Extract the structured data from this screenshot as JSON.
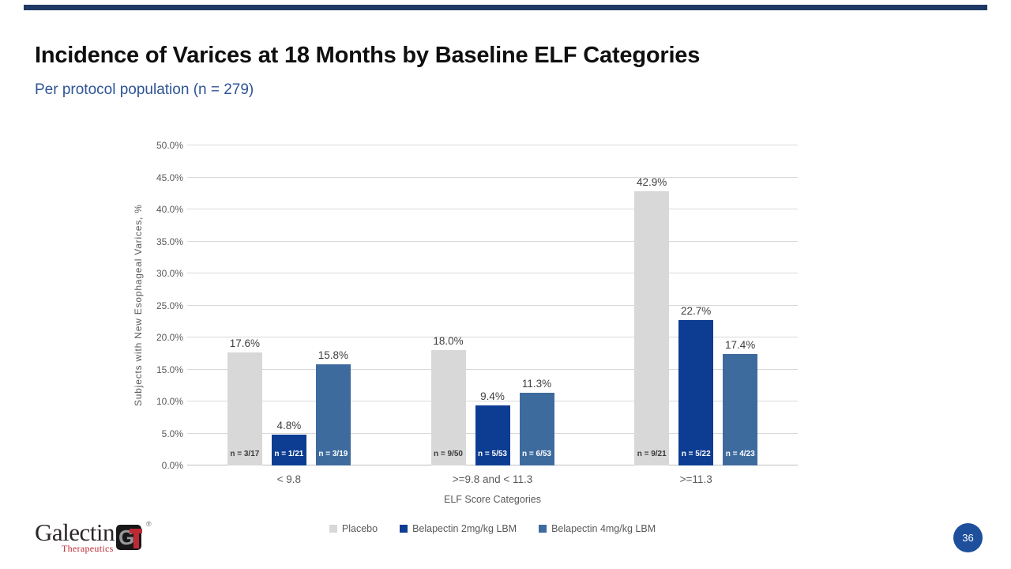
{
  "slide": {
    "title": "Incidence of Varices at 18 Months by Baseline ELF Categories",
    "subtitle": "Per protocol population (n = 279)",
    "page_number": "36"
  },
  "colors": {
    "accent_bar": "#1F3864",
    "subtitle_text": "#2E5496",
    "page_badge": "#1D4F9C",
    "gridline": "#D9D9D9",
    "axis_line": "#BFBFBF",
    "axis_text": "#595959",
    "value_label_text": "#404040",
    "logo_red": "#BE2A33",
    "logo_dark": "#2B2627"
  },
  "logo": {
    "name": "Galectin",
    "sub": "Therapeutics",
    "reg": "®",
    "monogram_g": "G"
  },
  "chart_data": {
    "type": "bar",
    "title": "",
    "xlabel": "ELF Score Categories",
    "ylabel": "Subjects with New Esophageal Varices, %",
    "ylim": [
      0,
      50
    ],
    "grid": true,
    "legend_position": "bottom",
    "yticks": [
      {
        "value": 0,
        "label": "0.0%"
      },
      {
        "value": 5,
        "label": "5.0%"
      },
      {
        "value": 10,
        "label": "10.0%"
      },
      {
        "value": 15,
        "label": "15.0%"
      },
      {
        "value": 20,
        "label": "20.0%"
      },
      {
        "value": 25,
        "label": "25.0%"
      },
      {
        "value": 30,
        "label": "30.0%"
      },
      {
        "value": 35,
        "label": "35.0%"
      },
      {
        "value": 40,
        "label": "40.0%"
      },
      {
        "value": 45,
        "label": "45.0%"
      },
      {
        "value": 50,
        "label": "50.0%"
      }
    ],
    "categories": [
      "< 9.8",
      ">=9.8 and < 11.3",
      ">=11.3"
    ],
    "series": [
      {
        "name": "Placebo",
        "color": "#D8D8D8",
        "values": [
          17.6,
          18.0,
          42.9
        ],
        "value_labels": [
          "17.6%",
          "18.0%",
          "42.9%"
        ],
        "n_labels": [
          "n = 3/17",
          "n = 9/50",
          "n = 9/21"
        ],
        "n_label_color": "#3A3A3A"
      },
      {
        "name": "Belapectin 2mg/kg LBM",
        "color": "#0D3D92",
        "values": [
          4.8,
          9.4,
          22.7
        ],
        "value_labels": [
          "4.8%",
          "9.4%",
          "22.7%"
        ],
        "n_labels": [
          "n = 1/21",
          "n = 5/53",
          "n = 5/22"
        ],
        "n_label_color": "#FFFFFF"
      },
      {
        "name": "Belapectin 4mg/kg LBM",
        "color": "#3E6B9E",
        "values": [
          15.8,
          11.3,
          17.4
        ],
        "value_labels": [
          "15.8%",
          "11.3%",
          "17.4%"
        ],
        "n_labels": [
          "n = 3/19",
          "n = 6/53",
          "n = 4/23"
        ],
        "n_label_color": "#FFFFFF"
      }
    ]
  }
}
